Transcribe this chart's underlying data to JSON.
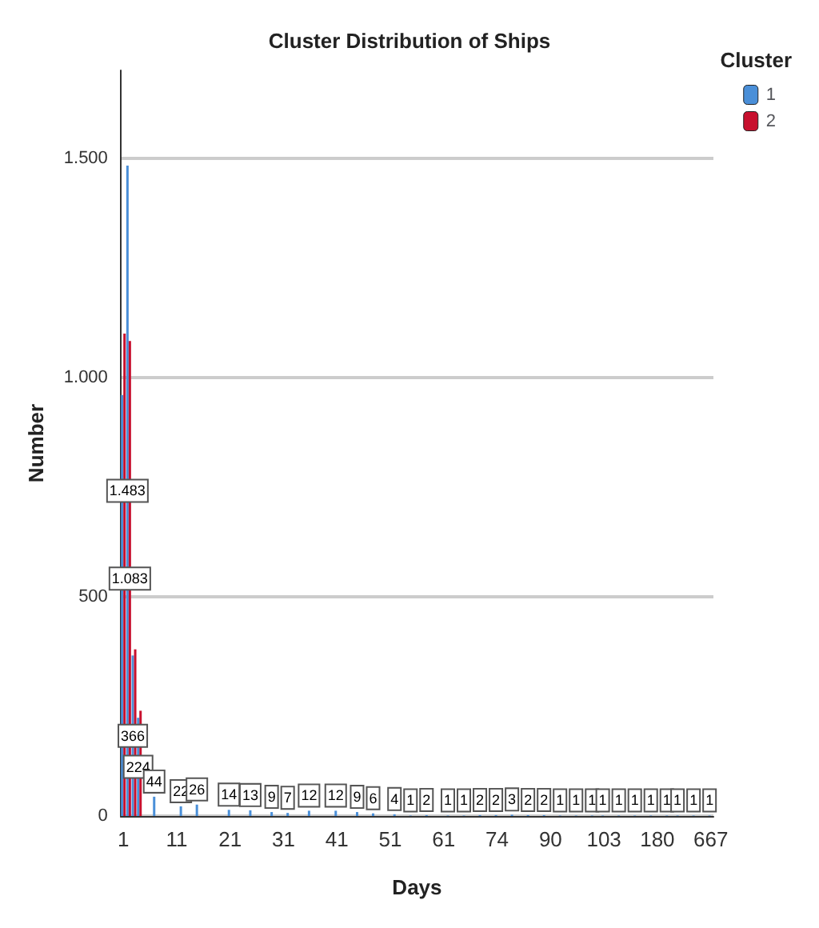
{
  "chart_data": {
    "type": "bar",
    "title": "Cluster Distribution of Ships",
    "xlabel": "Days",
    "ylabel": "Number",
    "legend_title": "Cluster",
    "legend": "top right",
    "grid": "y",
    "ylim": [
      0,
      1700
    ],
    "yticks": [
      0,
      500,
      {
        "value": 1000,
        "label": "1.000"
      },
      {
        "value": 1500,
        "label": "1.500"
      }
    ],
    "categories": [
      "1",
      null,
      null,
      null,
      null,
      null,
      null,
      null,
      null,
      null,
      "11",
      null,
      null,
      null,
      null,
      null,
      null,
      null,
      null,
      null,
      "21",
      null,
      null,
      null,
      null,
      null,
      null,
      null,
      null,
      null,
      "31",
      null,
      null,
      null,
      null,
      null,
      null,
      null,
      null,
      null,
      "41",
      null,
      null,
      null,
      null,
      null,
      null,
      null,
      null,
      null,
      "51",
      null,
      null,
      null,
      null,
      null,
      null,
      null,
      null,
      null,
      "61",
      null,
      null,
      null,
      null,
      null,
      null,
      null,
      null,
      null,
      "74",
      null,
      null,
      null,
      null,
      null,
      null,
      null,
      null,
      null,
      "90",
      null,
      null,
      null,
      null,
      null,
      null,
      null,
      null,
      null,
      "103",
      null,
      null,
      null,
      null,
      null,
      null,
      null,
      null,
      null,
      "180",
      null,
      null,
      null,
      null,
      null,
      null,
      null,
      null,
      null,
      "667"
    ],
    "series": [
      {
        "name": "1",
        "color": "#4a8fd8",
        "values": [
          960,
          1483,
          366,
          224,
          null,
          null,
          44,
          null,
          null,
          null,
          null,
          22,
          null,
          null,
          26,
          null,
          null,
          null,
          null,
          null,
          14,
          null,
          null,
          null,
          13,
          null,
          null,
          null,
          9,
          null,
          null,
          7,
          null,
          null,
          null,
          12,
          null,
          null,
          null,
          null,
          12,
          null,
          null,
          null,
          9,
          null,
          null,
          6,
          null,
          null,
          null,
          4,
          null,
          null,
          1,
          null,
          null,
          2,
          null,
          null,
          null,
          1,
          null,
          null,
          1,
          null,
          null,
          2,
          null,
          null,
          2,
          null,
          null,
          3,
          null,
          null,
          2,
          null,
          null,
          2,
          null,
          null,
          1,
          null,
          null,
          1,
          null,
          null,
          1,
          null,
          1,
          null,
          null,
          1,
          null,
          null,
          1,
          null,
          null,
          1,
          null,
          null,
          1,
          null,
          1,
          null,
          null,
          1,
          null,
          null,
          1
        ],
        "value_labels": [
          null,
          "1.483",
          "366",
          "224",
          null,
          null,
          "44",
          null,
          null,
          null,
          null,
          "22",
          null,
          null,
          "26",
          null,
          null,
          null,
          null,
          null,
          "14",
          null,
          null,
          null,
          "13",
          null,
          null,
          null,
          "9",
          null,
          null,
          "7",
          null,
          null,
          null,
          "12",
          null,
          null,
          null,
          null,
          "12",
          null,
          null,
          null,
          "9",
          null,
          null,
          "6",
          null,
          null,
          null,
          "4",
          null,
          null,
          "1",
          null,
          null,
          "2",
          null,
          null,
          null,
          "1",
          null,
          null,
          "1",
          null,
          null,
          "2",
          null,
          null,
          "2",
          null,
          null,
          "3",
          null,
          null,
          "2",
          null,
          null,
          "2",
          null,
          null,
          "1",
          null,
          null,
          "1",
          null,
          null,
          "1",
          null,
          "1",
          null,
          null,
          "1",
          null,
          null,
          "1",
          null,
          null,
          "1",
          null,
          null,
          "1",
          null,
          "1",
          null,
          null,
          "1",
          null,
          null,
          "1"
        ]
      },
      {
        "name": "2",
        "color": "#c8102e",
        "values": [
          1100,
          1083,
          380,
          240,
          null,
          null,
          null,
          null,
          null,
          null,
          null,
          null,
          null,
          null,
          null,
          null,
          null,
          null,
          null,
          null,
          null,
          null,
          null,
          null,
          null,
          null,
          null,
          null,
          null,
          null,
          null,
          null,
          null,
          null,
          null,
          null,
          null,
          null,
          null,
          null,
          null,
          null,
          null,
          null,
          null,
          null,
          null,
          null,
          null,
          null,
          null,
          null,
          null,
          null,
          null,
          null,
          null,
          null,
          null,
          null,
          null,
          null,
          null,
          null,
          null,
          null,
          null,
          null,
          null,
          null,
          null,
          null,
          null,
          null,
          null,
          null,
          null,
          null,
          null,
          null,
          null,
          null,
          null,
          null,
          null,
          null,
          null,
          null,
          null,
          null,
          null,
          null,
          null,
          null,
          null,
          null,
          null,
          null,
          null,
          null,
          null,
          null,
          null,
          null,
          null,
          null,
          null,
          null,
          null,
          null,
          null
        ],
        "value_labels": [
          null,
          "1.083",
          null,
          null,
          null,
          null,
          null,
          null,
          null,
          null,
          null,
          null,
          null,
          null,
          null,
          null,
          null,
          null,
          null,
          null,
          null,
          null,
          null,
          null,
          null,
          null,
          null,
          null,
          null,
          null,
          null,
          null,
          null,
          null,
          null,
          null,
          null,
          null,
          null,
          null,
          null,
          null,
          null,
          null,
          null,
          null,
          null,
          null,
          null,
          null,
          null,
          null,
          null,
          null,
          null,
          null,
          null,
          null,
          null,
          null,
          null,
          null,
          null,
          null,
          null,
          null,
          null,
          null,
          null,
          null,
          null,
          null,
          null,
          null,
          null,
          null,
          null,
          null,
          null,
          null,
          null,
          null,
          null,
          null,
          null,
          null,
          null,
          null,
          null,
          null,
          null,
          null,
          null,
          null,
          null,
          null,
          null,
          null,
          null,
          null,
          null,
          null,
          null,
          null,
          null,
          null,
          null,
          null,
          null,
          null,
          null
        ]
      }
    ]
  }
}
